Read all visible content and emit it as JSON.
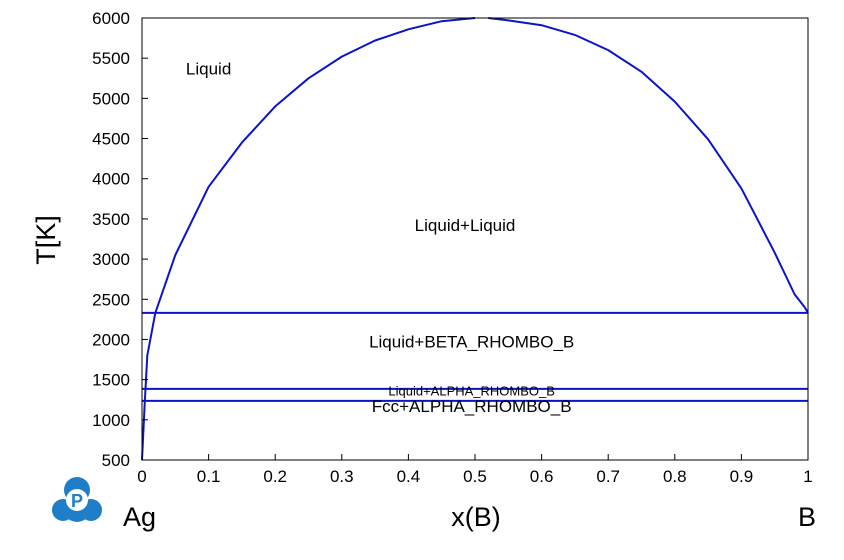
{
  "chart_data": {
    "type": "line",
    "title": "",
    "xlabel": "x(B)",
    "ylabel": "T[K]",
    "xlim": [
      0,
      1
    ],
    "ylim": [
      500,
      6000
    ],
    "x_ticks": [
      "0",
      "0.1",
      "0.2",
      "0.3",
      "0.4",
      "0.5",
      "0.6",
      "0.7",
      "0.8",
      "0.9",
      "1"
    ],
    "y_ticks": [
      "500",
      "1000",
      "1500",
      "2000",
      "2500",
      "3000",
      "3500",
      "4000",
      "4500",
      "5000",
      "5500",
      "6000"
    ],
    "x_end_labels": {
      "left": "Ag",
      "right": "B"
    },
    "line_color": "#0b14c8",
    "series": [
      {
        "x": [
          0.0,
          0.004,
          0.008,
          0.02,
          0.05,
          0.1,
          0.15,
          0.2,
          0.25,
          0.3,
          0.35,
          0.4,
          0.45,
          0.5
        ],
        "y": [
          500,
          1200,
          1800,
          2330,
          3050,
          3900,
          4450,
          4900,
          5250,
          5520,
          5720,
          5860,
          5960,
          6000
        ]
      },
      {
        "x": [
          0.52,
          0.55,
          0.6,
          0.65,
          0.7,
          0.75,
          0.8,
          0.85,
          0.9,
          0.95,
          0.98,
          0.995,
          1.0
        ],
        "y": [
          6000,
          5970,
          5910,
          5790,
          5600,
          5330,
          4960,
          4490,
          3880,
          3080,
          2560,
          2400,
          2330
        ]
      },
      {
        "x": [
          0.0,
          1.0
        ],
        "y": [
          2330,
          2330
        ]
      },
      {
        "x": [
          0.0,
          1.0
        ],
        "y": [
          1385,
          1385
        ]
      },
      {
        "x": [
          0.0,
          1.0
        ],
        "y": [
          1235,
          1235
        ]
      }
    ],
    "annotations": [
      {
        "text": "Liquid",
        "x": 0.1,
        "y": 5300,
        "size": "normal"
      },
      {
        "text": "Liquid+Liquid",
        "x": 0.485,
        "y": 3350,
        "size": "normal"
      },
      {
        "text": "Liquid+BETA_RHOMBO_B",
        "x": 0.495,
        "y": 1900,
        "size": "normal"
      },
      {
        "text": "Liquid+ALPHA_RHOMBO_B",
        "x": 0.495,
        "y": 1305,
        "size": "small"
      },
      {
        "text": "Fcc+ALPHA_RHOMBO_B",
        "x": 0.495,
        "y": 1100,
        "size": "normal"
      }
    ]
  },
  "logo": {
    "name": "pandat-logo-icon",
    "text": "P",
    "color": "#1e7fc8"
  }
}
